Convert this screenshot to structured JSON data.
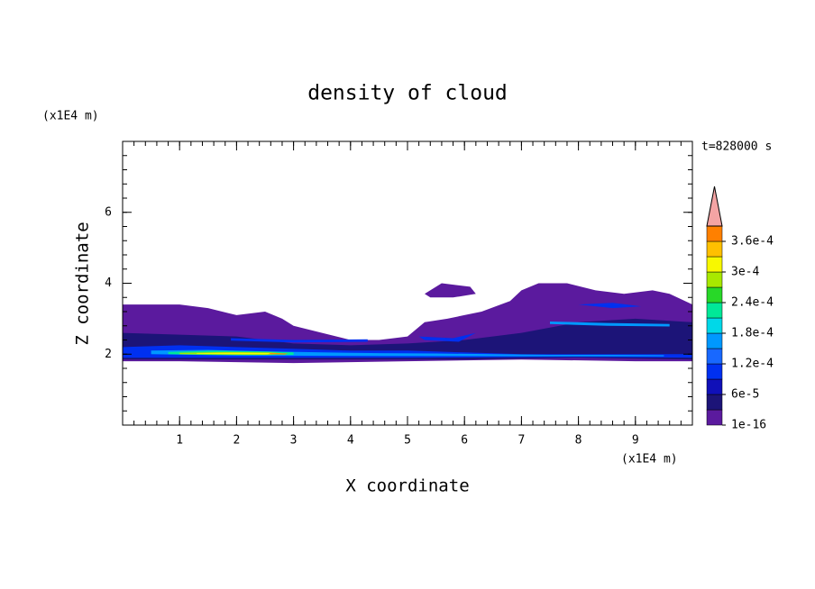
{
  "chart_data": {
    "type": "contour",
    "title": "density of cloud",
    "xlabel": "X coordinate",
    "ylabel": "Z coordinate",
    "xunit": "(x1E4 m)",
    "yunit": "(x1E4 m)",
    "time_label": "t=828000 s",
    "xlim": [
      0,
      10
    ],
    "ylim": [
      0,
      8
    ],
    "xticks": [
      1,
      2,
      3,
      4,
      5,
      6,
      7,
      8,
      9
    ],
    "yticks": [
      2,
      4,
      6
    ],
    "colorbar": {
      "levels": [
        1e-16,
        3e-05,
        6e-05,
        9e-05,
        0.00012,
        0.00015,
        0.00018,
        0.00021,
        0.00024,
        0.00027,
        0.0003,
        0.00033,
        0.00036,
        0.00039
      ],
      "colors": [
        "#5b1a9e",
        "#1c1478",
        "#1010b8",
        "#0030f0",
        "#1868ff",
        "#0098ff",
        "#00d8e8",
        "#00e898",
        "#28d828",
        "#a8e800",
        "#f8f800",
        "#ffc000",
        "#ff8000"
      ],
      "extend_color": "#f4a4a4",
      "ticks": [
        1e-16,
        {
          "value": 6e-05,
          "label": "6e-5"
        },
        {
          "value": 0.00012,
          "label": "1.2e-4"
        },
        {
          "value": 0.00018,
          "label": "1.8e-4"
        },
        {
          "value": 0.00024,
          "label": "2.4e-4"
        },
        {
          "value": 0.0003,
          "label": "3e-4"
        },
        {
          "value": 0.00036,
          "label": "3.6e-4"
        }
      ]
    },
    "regions": [
      {
        "value": 1e-05,
        "x": [
          0,
          1,
          1.5,
          2,
          2.5,
          2.8,
          3,
          3.5,
          4,
          4.5,
          5,
          5.3,
          5.7,
          6,
          6.3,
          6.8,
          7,
          7.3,
          7.8,
          8.3,
          8.8,
          9.3,
          9.6,
          10,
          10,
          9,
          7,
          5,
          3,
          1,
          0
        ],
        "z": [
          3.4,
          3.4,
          3.3,
          3.1,
          3.2,
          3.0,
          2.8,
          2.6,
          2.4,
          2.4,
          2.5,
          2.9,
          3.0,
          3.1,
          3.2,
          3.5,
          3.8,
          4.0,
          4.0,
          3.8,
          3.7,
          3.8,
          3.7,
          3.4,
          1.8,
          1.8,
          1.85,
          1.8,
          1.75,
          1.8,
          1.8
        ]
      },
      {
        "value": 1e-05,
        "x": [
          5.3,
          5.6,
          6.1,
          6.2,
          5.8,
          5.4
        ],
        "z": [
          3.7,
          4.0,
          3.9,
          3.7,
          3.6,
          3.6
        ]
      },
      {
        "value": 4e-05,
        "x": [
          0,
          2,
          3,
          4,
          5,
          6,
          7,
          8,
          9,
          10,
          10,
          8,
          6,
          4,
          2,
          0
        ],
        "z": [
          2.6,
          2.5,
          2.3,
          2.25,
          2.3,
          2.4,
          2.6,
          2.9,
          3.0,
          2.9,
          1.85,
          1.9,
          1.85,
          1.85,
          1.85,
          1.85
        ]
      },
      {
        "value": 0.0001,
        "x": [
          0,
          1,
          2,
          3,
          4,
          5,
          6,
          7,
          8,
          9,
          10,
          10,
          8,
          5,
          3,
          0
        ],
        "z": [
          2.2,
          2.25,
          2.2,
          2.15,
          2.1,
          2.1,
          2.05,
          2.0,
          2.0,
          2.0,
          2.0,
          1.9,
          1.92,
          1.9,
          1.9,
          1.9
        ]
      },
      {
        "value": 0.0001,
        "x": [
          1.9,
          3.0,
          4.3,
          4.3,
          3.0,
          1.9
        ],
        "z": [
          2.45,
          2.4,
          2.42,
          2.35,
          2.33,
          2.38
        ]
      },
      {
        "value": 0.0001,
        "x": [
          5.2,
          5.8,
          6.2,
          5.9,
          5.3
        ],
        "z": [
          2.5,
          2.45,
          2.6,
          2.35,
          2.4
        ]
      },
      {
        "value": 0.0001,
        "x": [
          8,
          8.6,
          9.1,
          8.6
        ],
        "z": [
          3.4,
          3.45,
          3.35,
          3.3
        ]
      },
      {
        "value": 0.00015,
        "x": [
          0.5,
          1.5,
          2.5,
          3.5,
          4.5,
          5.5,
          6.5,
          7.5,
          8.5,
          9.5,
          9.5,
          7,
          4.5,
          2,
          0.5
        ],
        "z": [
          2.1,
          2.12,
          2.08,
          2.05,
          2.03,
          2.02,
          2.0,
          1.98,
          1.98,
          1.97,
          1.94,
          1.94,
          1.95,
          1.96,
          2.0
        ]
      },
      {
        "value": 0.00015,
        "x": [
          7.5,
          8.5,
          9.6,
          9.6,
          8.5,
          7.5
        ],
        "z": [
          2.92,
          2.88,
          2.85,
          2.78,
          2.8,
          2.85
        ]
      },
      {
        "value": 0.00021,
        "x": [
          0.8,
          1.6,
          2.4,
          3.0,
          3.0,
          2.2,
          1.4,
          0.8
        ],
        "z": [
          2.06,
          2.1,
          2.08,
          2.05,
          1.98,
          1.97,
          1.98,
          2.0
        ]
      },
      {
        "value": 0.00028,
        "x": [
          1.0,
          1.8,
          2.6,
          2.9,
          2.5,
          1.6,
          1.0
        ],
        "z": [
          2.04,
          2.06,
          2.05,
          2.01,
          1.98,
          1.99,
          2.0
        ]
      },
      {
        "value": 0.00032,
        "x": [
          1.3,
          2.0,
          2.7,
          2.6,
          1.9,
          1.3
        ],
        "z": [
          2.03,
          2.04,
          2.03,
          2.0,
          2.0,
          2.01
        ]
      },
      {
        "value": 0.00037,
        "x": [
          2.6,
          2.9,
          2.85,
          2.55
        ],
        "z": [
          2.03,
          2.02,
          1.99,
          2.0
        ]
      }
    ]
  }
}
